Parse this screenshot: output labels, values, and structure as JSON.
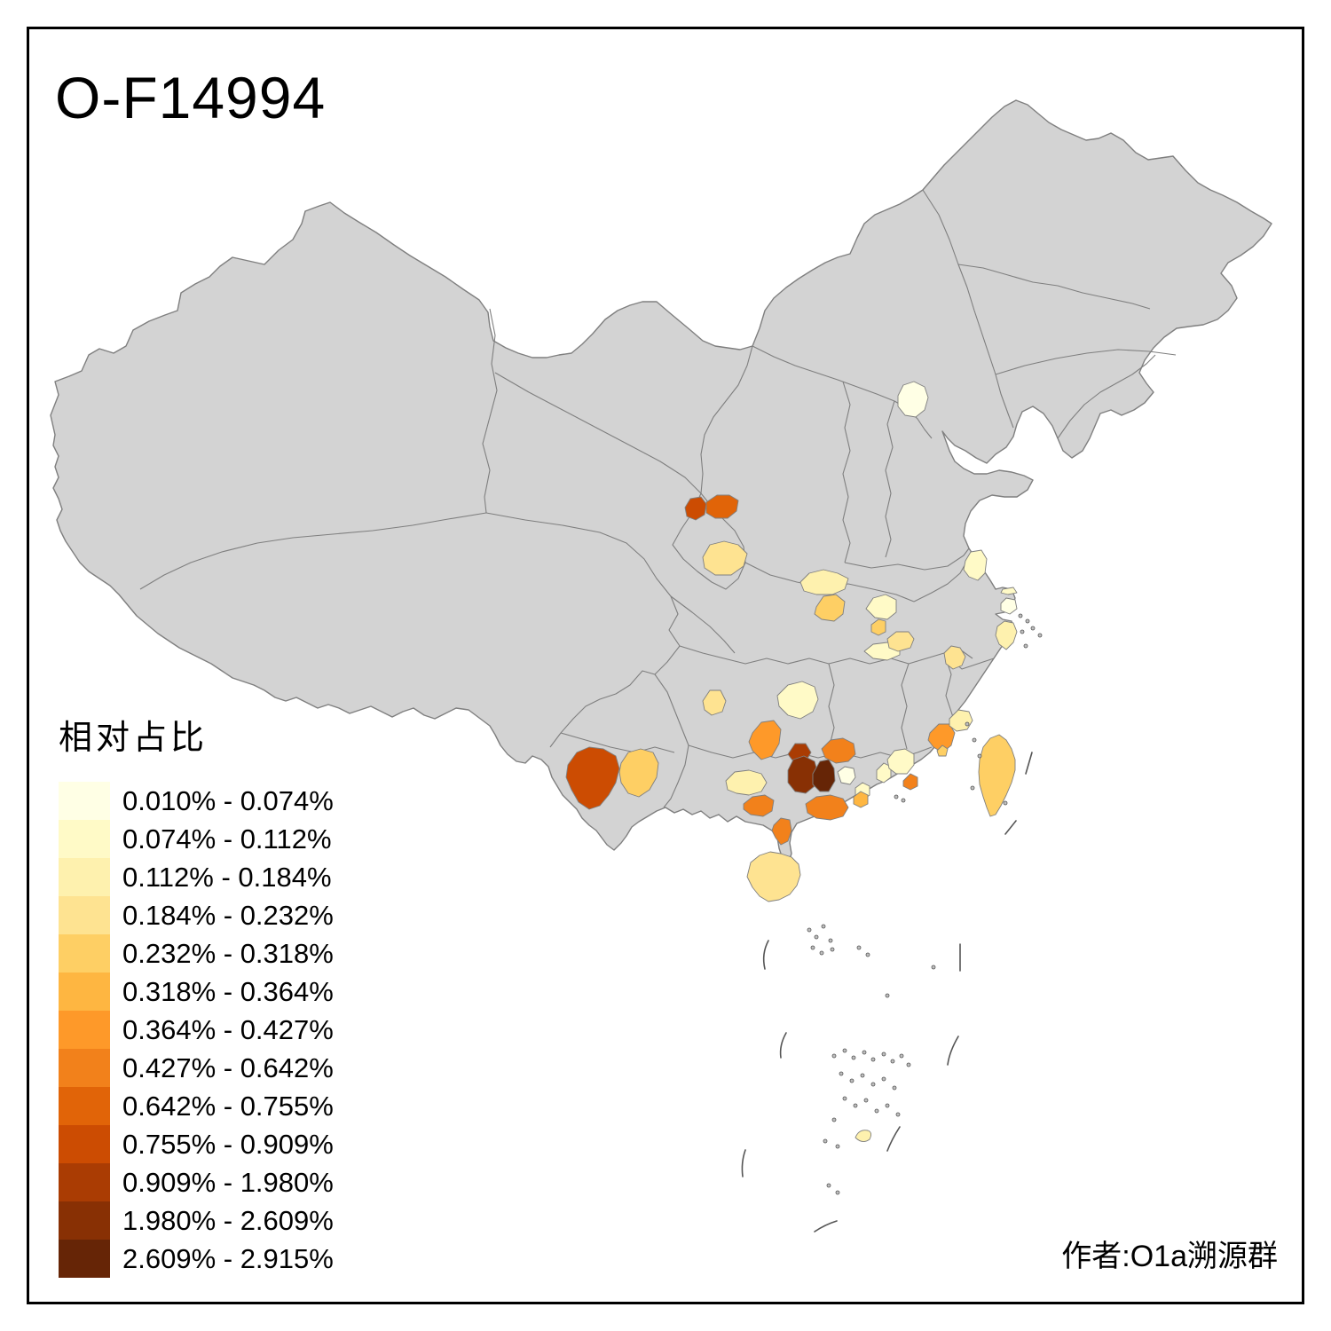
{
  "title": "O-F14994",
  "author": "作者:O1a溯源群",
  "chart_data": {
    "type": "choropleth",
    "legend_title": "相对占比",
    "basemap": {
      "land_color": "#D3D3D3",
      "border_color": "#7F7F7F",
      "background": "#FFFFFF",
      "frame_color": "#000000",
      "sea_detail_color": "#555555"
    },
    "classes": [
      {
        "label": "0.010% - 0.074%",
        "color": "#FFFFE5"
      },
      {
        "label": "0.074% - 0.112%",
        "color": "#FFFAC7"
      },
      {
        "label": "0.112% - 0.184%",
        "color": "#FEF1AE"
      },
      {
        "label": "0.184% - 0.232%",
        "color": "#FEE391"
      },
      {
        "label": "0.232% - 0.318%",
        "color": "#FECF64"
      },
      {
        "label": "0.318% - 0.364%",
        "color": "#FEB641"
      },
      {
        "label": "0.364% - 0.427%",
        "color": "#FE9929"
      },
      {
        "label": "0.427% - 0.642%",
        "color": "#F2811B"
      },
      {
        "label": "0.642% - 0.755%",
        "color": "#E16408"
      },
      {
        "label": "0.755% - 0.909%",
        "color": "#CC4C02"
      },
      {
        "label": "0.909% - 1.980%",
        "color": "#AA3C03"
      },
      {
        "label": "1.980% - 2.609%",
        "color": "#883004"
      },
      {
        "label": "2.609% - 2.915%",
        "color": "#662506"
      }
    ],
    "regions": [
      {
        "id": "r01-north-beijing",
        "class": 1,
        "range": "0.010% - 0.074%",
        "color": "#FFFFE5"
      },
      {
        "id": "r02-northwest-a",
        "class": 10,
        "range": "0.755% - 0.909%",
        "color": "#CC4C02"
      },
      {
        "id": "r03-northwest-b",
        "class": 9,
        "range": "0.642% - 0.755%",
        "color": "#E16408"
      },
      {
        "id": "r04-northwest-south",
        "class": 4,
        "range": "0.184% - 0.232%",
        "color": "#FEE391"
      },
      {
        "id": "r05-central-a",
        "class": 3,
        "range": "0.112% - 0.184%",
        "color": "#FEF1AE"
      },
      {
        "id": "r06-central-b",
        "class": 5,
        "range": "0.232% - 0.318%",
        "color": "#FECF64"
      },
      {
        "id": "r07-central-c",
        "class": 2,
        "range": "0.074% - 0.112%",
        "color": "#FFFAC7"
      },
      {
        "id": "r08-central-d",
        "class": 5,
        "range": "0.232% - 0.318%",
        "color": "#FECF64"
      },
      {
        "id": "r09-central-e",
        "class": 2,
        "range": "0.074% - 0.112%",
        "color": "#FFFAC7"
      },
      {
        "id": "r10-central-f",
        "class": 4,
        "range": "0.184% - 0.232%",
        "color": "#FEE391"
      },
      {
        "id": "r11-east-a",
        "class": 2,
        "range": "0.074% - 0.112%",
        "color": "#FFFAC7"
      },
      {
        "id": "r12-east-coast-a",
        "class": 1,
        "range": "0.010% - 0.074%",
        "color": "#FFFFE5"
      },
      {
        "id": "r13-east-coast-b",
        "class": 2,
        "range": "0.074% - 0.112%",
        "color": "#FFFAC7"
      },
      {
        "id": "r14-east-coast-c",
        "class": 3,
        "range": "0.112% - 0.184%",
        "color": "#FEF1AE"
      },
      {
        "id": "r15-east-inland",
        "class": 4,
        "range": "0.184% - 0.232%",
        "color": "#FEE391"
      },
      {
        "id": "r16-south-central-a",
        "class": 4,
        "range": "0.184% - 0.232%",
        "color": "#FEE391"
      },
      {
        "id": "r17-south-central-b",
        "class": 2,
        "range": "0.074% - 0.112%",
        "color": "#FFFAC7"
      },
      {
        "id": "r18-south-central-c",
        "class": 7,
        "range": "0.364% - 0.427%",
        "color": "#FE9929"
      },
      {
        "id": "r19-southwest-large",
        "class": 10,
        "range": "0.755% - 0.909%",
        "color": "#CC4C02"
      },
      {
        "id": "r20-southwest-b",
        "class": 5,
        "range": "0.232% - 0.318%",
        "color": "#FECF64"
      },
      {
        "id": "r21-southwest-c",
        "class": 3,
        "range": "0.112% - 0.184%",
        "color": "#FEF1AE"
      },
      {
        "id": "r22-south-border",
        "class": 8,
        "range": "0.427% - 0.642%",
        "color": "#F2811B"
      },
      {
        "id": "r23-south-dark-a",
        "class": 11,
        "range": "0.909% - 1.980%",
        "color": "#AA3C03"
      },
      {
        "id": "r24-south-dark-b",
        "class": 12,
        "range": "1.980% - 2.609%",
        "color": "#883004"
      },
      {
        "id": "r25-south-darkest",
        "class": 13,
        "range": "2.609% - 2.915%",
        "color": "#662506"
      },
      {
        "id": "r26-south-orange-a",
        "class": 8,
        "range": "0.427% - 0.642%",
        "color": "#F2811B"
      },
      {
        "id": "r27-south-pale-a",
        "class": 1,
        "range": "0.010% - 0.074%",
        "color": "#FFFFE5"
      },
      {
        "id": "r28-south-pale-b",
        "class": 2,
        "range": "0.074% - 0.112%",
        "color": "#FFFAC7"
      },
      {
        "id": "r29-south-orange-b",
        "class": 8,
        "range": "0.427% - 0.642%",
        "color": "#F2811B"
      },
      {
        "id": "r30-south-orange-c",
        "class": 6,
        "range": "0.318% - 0.364%",
        "color": "#FEB641"
      },
      {
        "id": "r31-south-peninsula",
        "class": 8,
        "range": "0.427% - 0.642%",
        "color": "#F2811B"
      },
      {
        "id": "r32-hainan-island",
        "class": 4,
        "range": "0.184% - 0.232%",
        "color": "#FEE391"
      },
      {
        "id": "r33-southeast-pale-a",
        "class": 2,
        "range": "0.074% - 0.112%",
        "color": "#FFFAC7"
      },
      {
        "id": "r34-southeast-orange-a",
        "class": 8,
        "range": "0.427% - 0.642%",
        "color": "#F2811B"
      },
      {
        "id": "r35-southeast-pale-b",
        "class": 2,
        "range": "0.074% - 0.112%",
        "color": "#FFFAC7"
      },
      {
        "id": "r36-southeast-orange-b",
        "class": 7,
        "range": "0.364% - 0.427%",
        "color": "#FE9929"
      },
      {
        "id": "r37-southeast-pale-c",
        "class": 3,
        "range": "0.112% - 0.184%",
        "color": "#FEF1AE"
      },
      {
        "id": "r38-southeast-small",
        "class": 5,
        "range": "0.232% - 0.318%",
        "color": "#FECF64"
      },
      {
        "id": "r39-taiwan-island",
        "class": 5,
        "range": "0.232% - 0.318%",
        "color": "#FECF64"
      },
      {
        "id": "r40-south-sea-islet",
        "class": 3,
        "range": "0.112% - 0.184%",
        "color": "#FEF1AE"
      }
    ]
  }
}
